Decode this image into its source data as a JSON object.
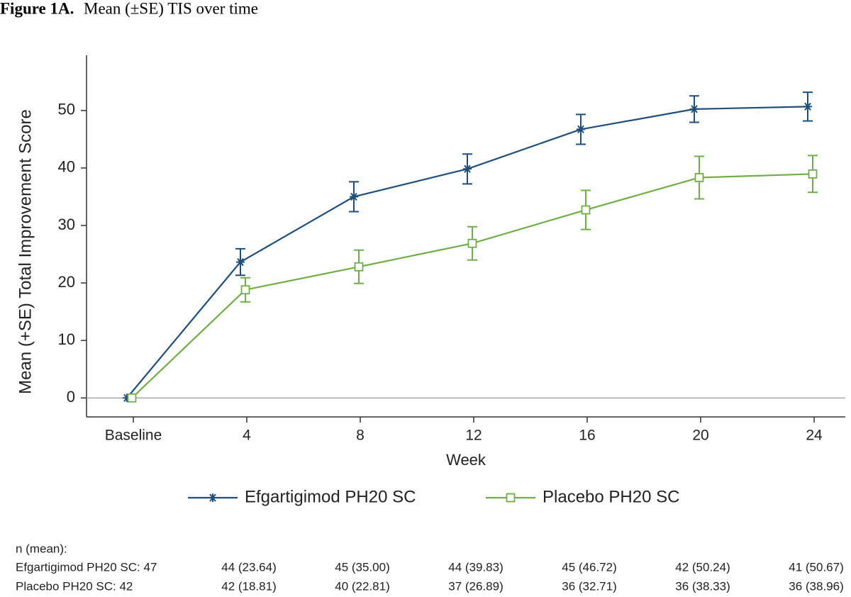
{
  "figure_label": "Figure 1A.",
  "chart_data": {
    "type": "line",
    "title": "Mean (±SE) TIS over time",
    "x_label": "Week",
    "y_label": "Mean (+SE) Total Improvement Score",
    "categories": [
      "Baseline",
      "4",
      "8",
      "12",
      "16",
      "20",
      "24"
    ],
    "series": [
      {
        "name": "Efgartigimod PH20 SC",
        "color": "#1f4e79",
        "marker": "asterisk",
        "values": [
          0,
          23.64,
          35.0,
          39.83,
          46.72,
          50.24,
          50.67
        ],
        "errors": [
          null,
          2.3,
          2.6,
          2.6,
          2.6,
          2.3,
          2.5
        ]
      },
      {
        "name": "Placebo PH20 SC",
        "color": "#70ad47",
        "marker": "square",
        "values": [
          0,
          18.81,
          22.81,
          26.89,
          32.71,
          38.33,
          38.96
        ],
        "errors": [
          null,
          2.1,
          2.9,
          2.9,
          3.4,
          3.7,
          3.2
        ]
      }
    ],
    "ylim": [
      -3.3,
      59.6
    ],
    "yticks": [
      0,
      10,
      20,
      30,
      40,
      50
    ],
    "zero_line": true,
    "legend": "bottom"
  },
  "table": {
    "heading": "n (mean):",
    "rows": [
      {
        "label": "Efgartigimod PH20 SC: 47",
        "cells": [
          "44 (23.64)",
          "45 (35.00)",
          "44 (39.83)",
          "45 (46.72)",
          "42 (50.24)",
          "41 (50.67)"
        ]
      },
      {
        "label": "Placebo PH20 SC: 42",
        "cells": [
          "42 (18.81)",
          "40 (22.81)",
          "37 (26.89)",
          "36 (32.71)",
          "36 (38.33)",
          "36 (38.96)"
        ]
      }
    ]
  }
}
